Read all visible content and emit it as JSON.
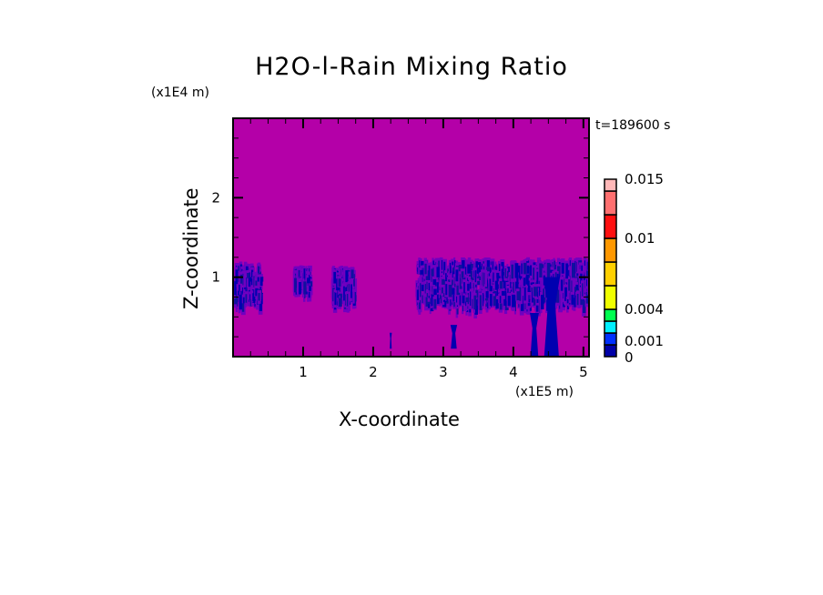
{
  "chart_data": {
    "type": "heatmap",
    "title": "H2O-l-Rain Mixing Ratio",
    "xlabel": "X-coordinate",
    "ylabel": "Z-coordinate",
    "x_unit": "(x1E5 m)",
    "y_unit": "(x1E4 m)",
    "time_label": "t=189600 s",
    "xlim": [
      0,
      5.08
    ],
    "ylim": [
      0,
      3.0
    ],
    "x_ticks": [
      "1",
      "2",
      "3",
      "4",
      "5"
    ],
    "x_tick_values": [
      1,
      2,
      3,
      4,
      5
    ],
    "y_ticks": [
      "1",
      "2"
    ],
    "y_tick_values": [
      1,
      2
    ],
    "background_color": "#b400a8",
    "colorbar": {
      "levels": [
        0,
        0.001,
        0.002,
        0.003,
        0.004,
        0.006,
        0.008,
        0.01,
        0.012,
        0.014,
        0.015
      ],
      "colors": [
        "#0000a8",
        "#0030ff",
        "#00f0ff",
        "#00ff50",
        "#f0ff00",
        "#ffd000",
        "#ff9800",
        "#ff1010",
        "#ff7070",
        "#ffb8b8"
      ],
      "labels": [
        "0",
        "0.001",
        "0.004",
        "0.01",
        "0.015"
      ],
      "label_values": [
        0,
        0.001,
        0.004,
        0.01,
        0.015
      ]
    },
    "features": [
      {
        "kind": "band",
        "x": [
          0.0,
          0.38
        ],
        "z": [
          0.75,
          1.2
        ],
        "value": 0.0008
      },
      {
        "kind": "band",
        "x": [
          0.85,
          1.1
        ],
        "z": [
          0.95,
          1.15
        ],
        "value": 0.0006
      },
      {
        "kind": "band",
        "x": [
          1.4,
          1.72
        ],
        "z": [
          0.8,
          1.15
        ],
        "value": 0.0007
      },
      {
        "kind": "band",
        "x": [
          2.6,
          5.08
        ],
        "z": [
          0.75,
          1.25
        ],
        "value": 0.0009
      },
      {
        "kind": "plume",
        "x": [
          4.47,
          4.62
        ],
        "z": [
          0.0,
          1.0
        ],
        "value": 0.0009
      },
      {
        "kind": "plume",
        "x": [
          4.26,
          4.34
        ],
        "z": [
          0.0,
          0.55
        ],
        "value": 0.0009
      },
      {
        "kind": "plume",
        "x": [
          3.12,
          3.18
        ],
        "z": [
          0.1,
          0.4
        ],
        "value": 0.0004
      },
      {
        "kind": "plume",
        "x": [
          2.24,
          2.26
        ],
        "z": [
          0.1,
          0.3
        ],
        "value": 0.0004
      }
    ]
  }
}
